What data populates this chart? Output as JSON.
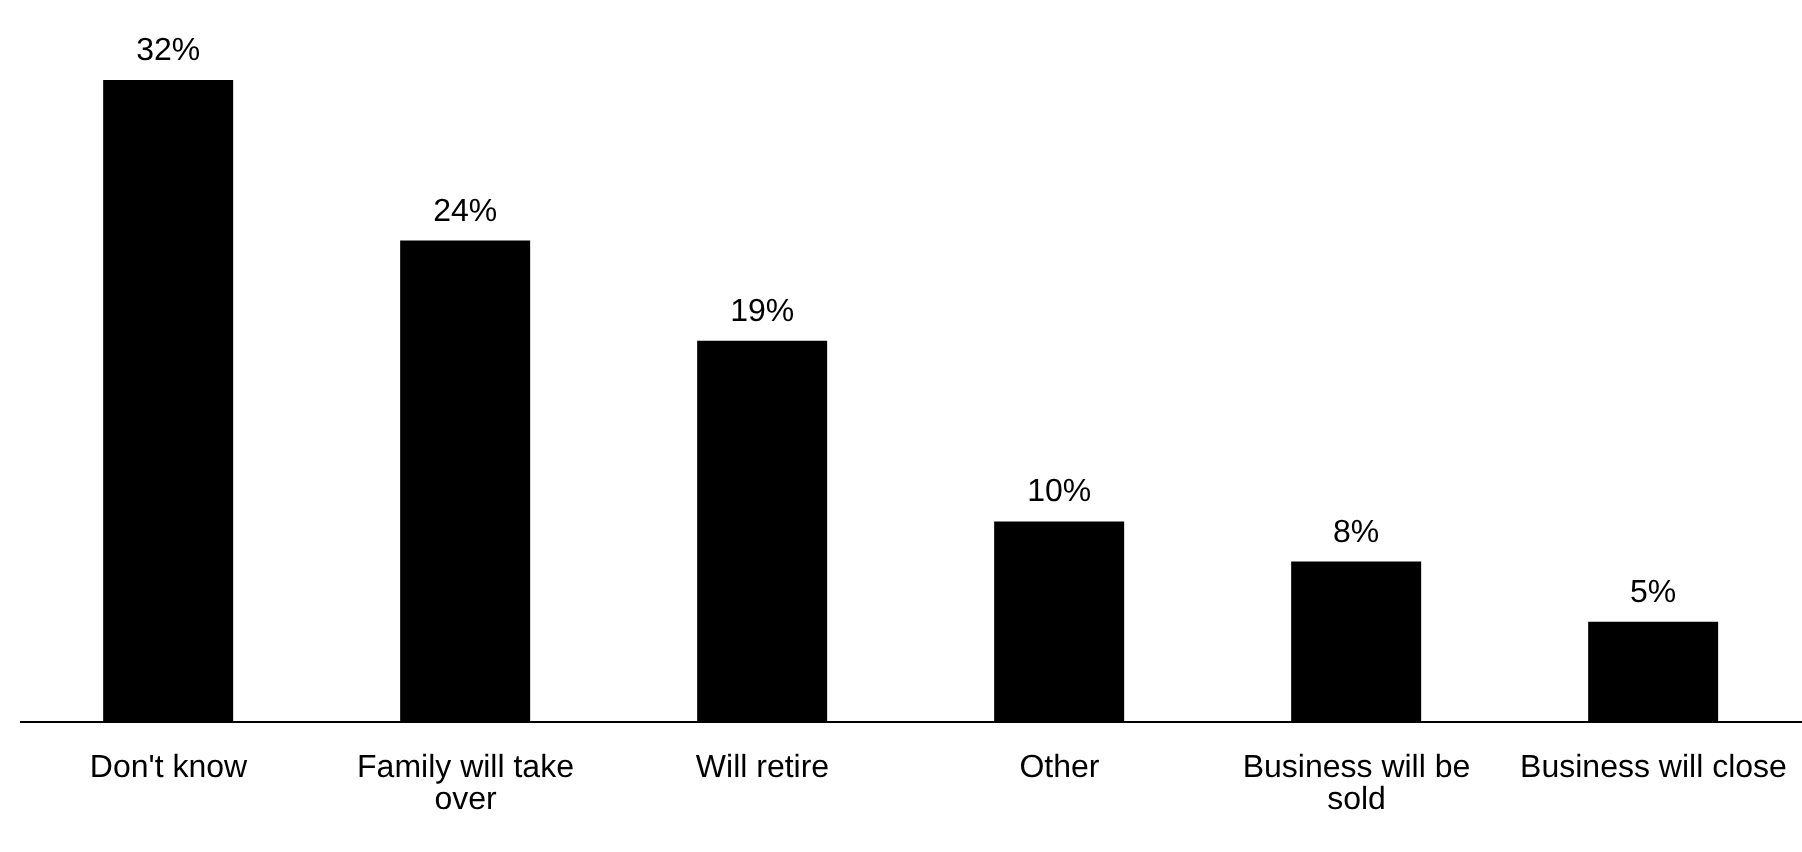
{
  "chart_data": {
    "type": "bar",
    "categories": [
      "Don't know",
      "Family will take over",
      "Will retire",
      "Other",
      "Business will be sold",
      "Business will close"
    ],
    "values": [
      32,
      24,
      19,
      10,
      8,
      5
    ],
    "color": "#000000",
    "value_labels": [
      "32%",
      "24%",
      "19%",
      "10%",
      "8%",
      "5%"
    ]
  }
}
